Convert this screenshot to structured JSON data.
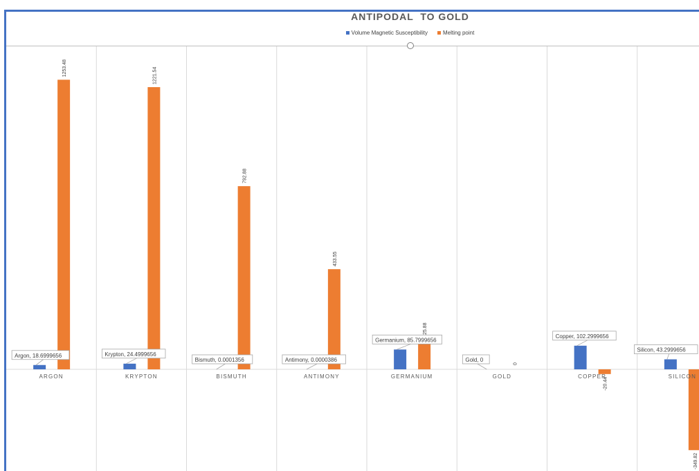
{
  "chart_data": {
    "type": "bar",
    "title": "ANTIPODAL  TO GOLD",
    "categories": [
      "ARGON",
      "KRYPTON",
      "BISMUTH",
      "ANTIMONY",
      "GERMANIUM",
      "GOLD",
      "COPPER",
      "SILICON"
    ],
    "series": [
      {
        "name": "Volume Magnetic Susceptibility",
        "color": "#4472c4",
        "values": [
          18.6999656,
          24.4999656,
          0.0001356,
          3.86e-05,
          85.7999656,
          0,
          102.2999656,
          43.2999656
        ],
        "callouts": [
          "Argon, 18.6999656",
          "Krypton, 24.4999656",
          "Bismuth, 0.0001356",
          "Antimony, 0.0000386",
          "Germanium, 85.7999656",
          "Gold, 0",
          "Copper, 102.2999656",
          "Silicon, 43.2999656"
        ]
      },
      {
        "name": "Melting point",
        "color": "#ed7d31",
        "values": [
          1253.48,
          1221.54,
          792.88,
          433.55,
          125.88,
          0,
          -20.44,
          -349.82
        ],
        "labels": [
          "1253.48",
          "1221.54",
          "792.88",
          "433.55",
          "125.88",
          "0",
          "-20.44",
          "-349.82"
        ]
      }
    ],
    "legend_position": "top",
    "grid": "vertical category separators",
    "ylim": [
      -436,
      1400
    ]
  }
}
